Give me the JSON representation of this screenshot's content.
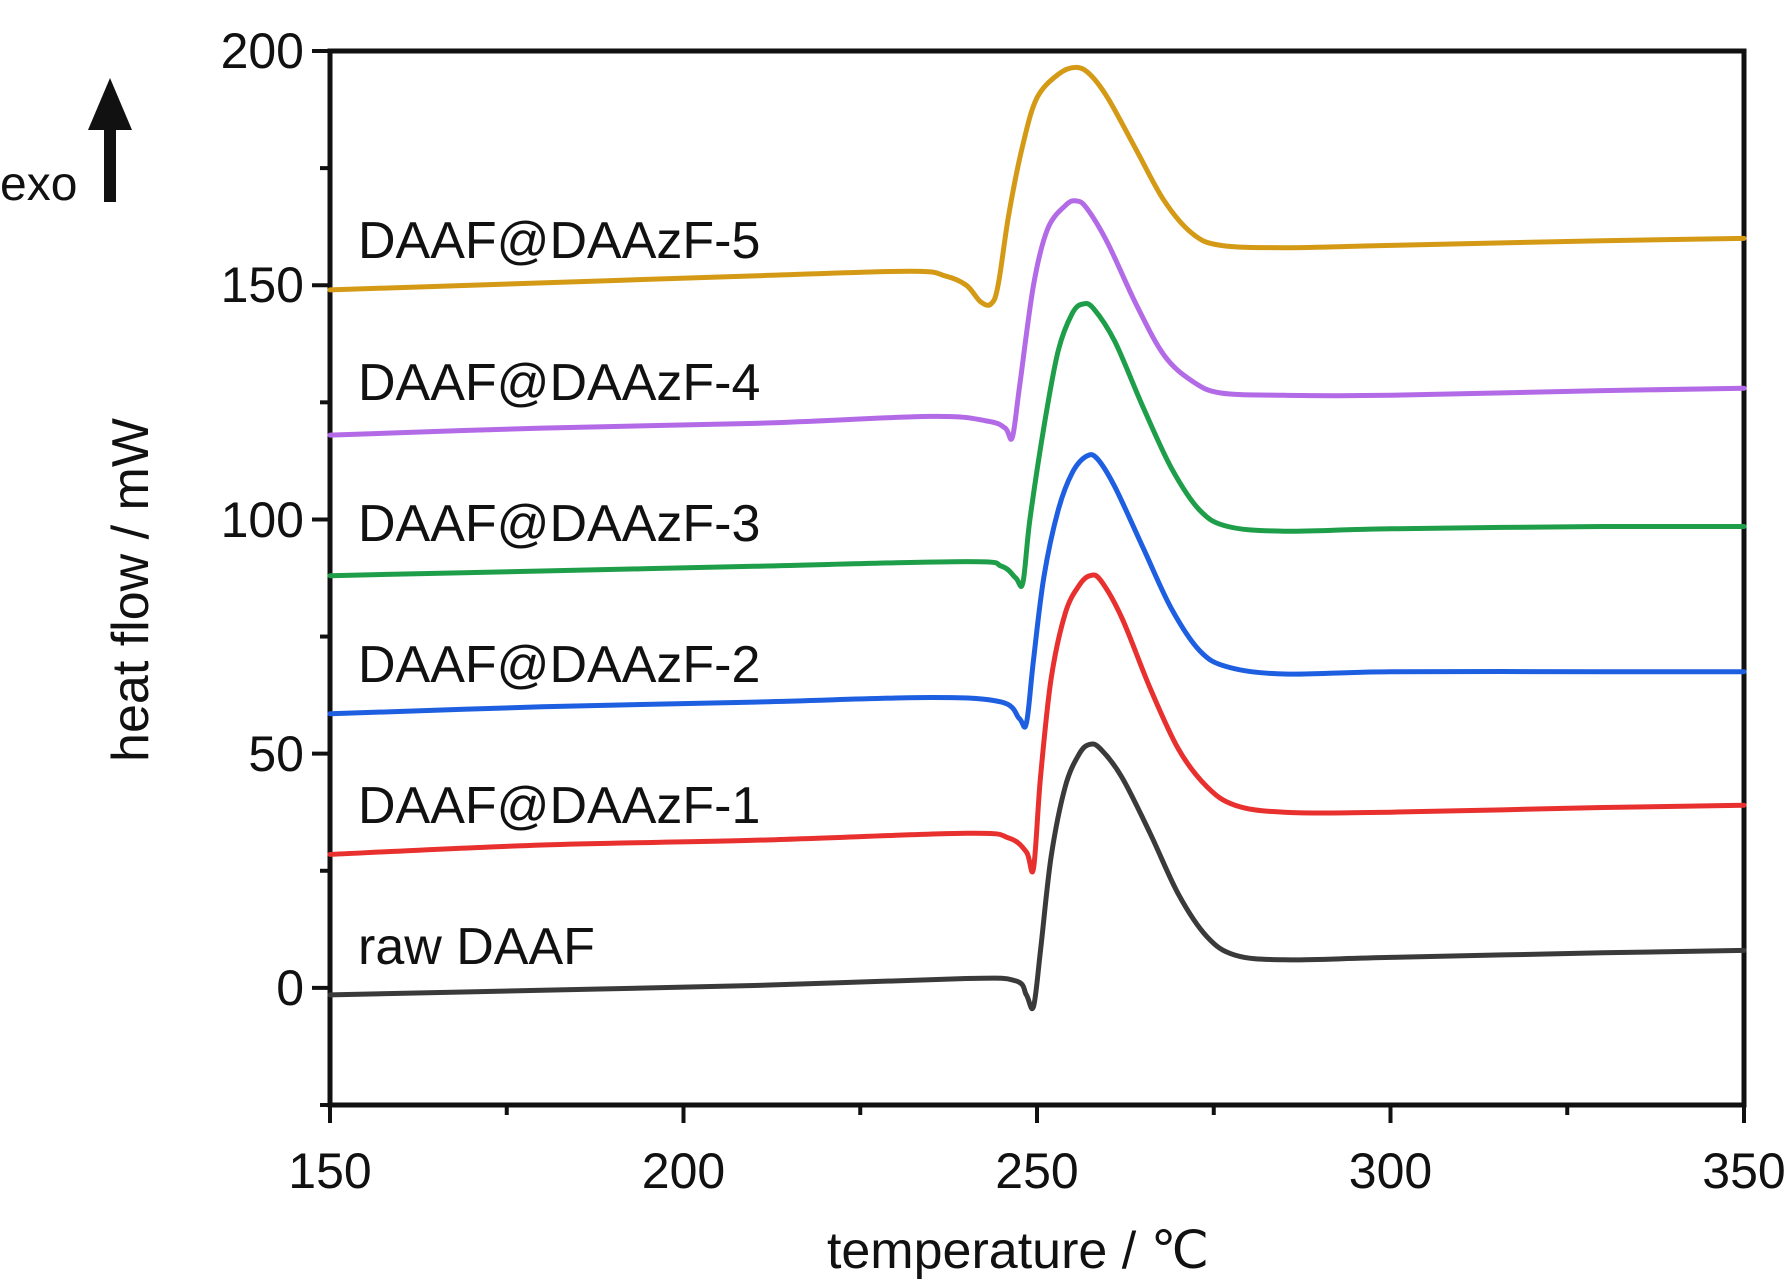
{
  "chart_data": {
    "type": "line",
    "title": "",
    "xlabel": "temperature / ℃",
    "ylabel": "heat flow / mW",
    "xlim": [
      150,
      350
    ],
    "ylim": [
      -25,
      200
    ],
    "x_ticks": [
      "150",
      "200",
      "250",
      "300",
      "350"
    ],
    "y_ticks": [
      "0",
      "50",
      "100",
      "150",
      "200"
    ],
    "annotation": "exo",
    "grid": false,
    "legend": "inline labels at upper-left of each curve",
    "series": [
      {
        "name": "raw DAAF",
        "color": "#3a3a3a",
        "points": [
          [
            150,
            -1.5
          ],
          [
            180,
            -0.5
          ],
          [
            210,
            0.5
          ],
          [
            240,
            2
          ],
          [
            247,
            1.5
          ],
          [
            248.5,
            -1.5
          ],
          [
            249.5,
            -4
          ],
          [
            250.5,
            8
          ],
          [
            252,
            28
          ],
          [
            254,
            43
          ],
          [
            256,
            50
          ],
          [
            257.5,
            52
          ],
          [
            259,
            51
          ],
          [
            262,
            45
          ],
          [
            266,
            33
          ],
          [
            270,
            20
          ],
          [
            274,
            11
          ],
          [
            278,
            7
          ],
          [
            285,
            6
          ],
          [
            300,
            6.5
          ],
          [
            330,
            7.5
          ],
          [
            350,
            8
          ]
        ]
      },
      {
        "name": "DAAF@DAAzF-1",
        "color": "#e8302e",
        "points": [
          [
            150,
            28.5
          ],
          [
            180,
            30.5
          ],
          [
            210,
            31.5
          ],
          [
            240,
            33
          ],
          [
            246,
            32
          ],
          [
            248.5,
            29
          ],
          [
            249.5,
            25.5
          ],
          [
            250.5,
            45
          ],
          [
            252,
            66
          ],
          [
            254,
            80
          ],
          [
            256,
            86
          ],
          [
            257.5,
            88
          ],
          [
            259,
            87
          ],
          [
            262,
            79
          ],
          [
            266,
            64
          ],
          [
            270,
            51
          ],
          [
            274,
            43
          ],
          [
            278,
            39
          ],
          [
            285,
            37.5
          ],
          [
            300,
            37.5
          ],
          [
            330,
            38.5
          ],
          [
            350,
            39
          ]
        ]
      },
      {
        "name": "DAAF@DAAzF-2",
        "color": "#1d5fe0",
        "points": [
          [
            150,
            58.5
          ],
          [
            180,
            60
          ],
          [
            210,
            61
          ],
          [
            235,
            62
          ],
          [
            245,
            61
          ],
          [
            247.5,
            57.5
          ],
          [
            248.5,
            56.5
          ],
          [
            249.5,
            70
          ],
          [
            251,
            88
          ],
          [
            253,
            102
          ],
          [
            255,
            110
          ],
          [
            257,
            113.5
          ],
          [
            258.5,
            113
          ],
          [
            261,
            107
          ],
          [
            265,
            94
          ],
          [
            269,
            81
          ],
          [
            273,
            72
          ],
          [
            277,
            68.5
          ],
          [
            285,
            67
          ],
          [
            300,
            67.5
          ],
          [
            330,
            67.5
          ],
          [
            350,
            67.5
          ]
        ]
      },
      {
        "name": "DAAF@DAAzF-3",
        "color": "#1f9e4a",
        "points": [
          [
            150,
            88
          ],
          [
            180,
            89
          ],
          [
            210,
            90
          ],
          [
            240,
            91
          ],
          [
            245,
            90
          ],
          [
            247,
            87.5
          ],
          [
            248,
            86.5
          ],
          [
            249,
            100
          ],
          [
            251,
            120
          ],
          [
            253,
            136
          ],
          [
            255,
            144
          ],
          [
            256.5,
            146
          ],
          [
            258,
            145
          ],
          [
            261,
            138
          ],
          [
            265,
            124
          ],
          [
            269,
            111
          ],
          [
            273,
            102
          ],
          [
            277,
            98.5
          ],
          [
            285,
            97.5
          ],
          [
            300,
            98
          ],
          [
            330,
            98.5
          ],
          [
            350,
            98.5
          ]
        ]
      },
      {
        "name": "DAAF@DAAzF-4",
        "color": "#b36ae6",
        "points": [
          [
            150,
            118
          ],
          [
            180,
            119.5
          ],
          [
            210,
            120.5
          ],
          [
            235,
            122
          ],
          [
            243,
            121
          ],
          [
            245.5,
            119.5
          ],
          [
            246.5,
            117.5
          ],
          [
            247.5,
            128
          ],
          [
            249.5,
            150
          ],
          [
            251.5,
            162
          ],
          [
            254,
            167
          ],
          [
            255.5,
            168
          ],
          [
            257,
            166.5
          ],
          [
            260,
            159
          ],
          [
            264,
            146
          ],
          [
            268,
            135
          ],
          [
            272,
            129.5
          ],
          [
            276,
            127
          ],
          [
            285,
            126.5
          ],
          [
            300,
            126.5
          ],
          [
            330,
            127.5
          ],
          [
            350,
            128
          ]
        ]
      },
      {
        "name": "DAAF@DAAzF-5",
        "color": "#d49a16",
        "points": [
          [
            150,
            149
          ],
          [
            180,
            150.5
          ],
          [
            210,
            152
          ],
          [
            232,
            153
          ],
          [
            237,
            152
          ],
          [
            240,
            150
          ],
          [
            242,
            146.5
          ],
          [
            243.5,
            146
          ],
          [
            244.5,
            150
          ],
          [
            246,
            165
          ],
          [
            248,
            180
          ],
          [
            250,
            190
          ],
          [
            253,
            195
          ],
          [
            255.5,
            196.5
          ],
          [
            257.5,
            195
          ],
          [
            260,
            190
          ],
          [
            264,
            179
          ],
          [
            268,
            168
          ],
          [
            272,
            161
          ],
          [
            276,
            158.5
          ],
          [
            285,
            158
          ],
          [
            300,
            158.5
          ],
          [
            330,
            159.5
          ],
          [
            350,
            160
          ]
        ]
      }
    ]
  }
}
